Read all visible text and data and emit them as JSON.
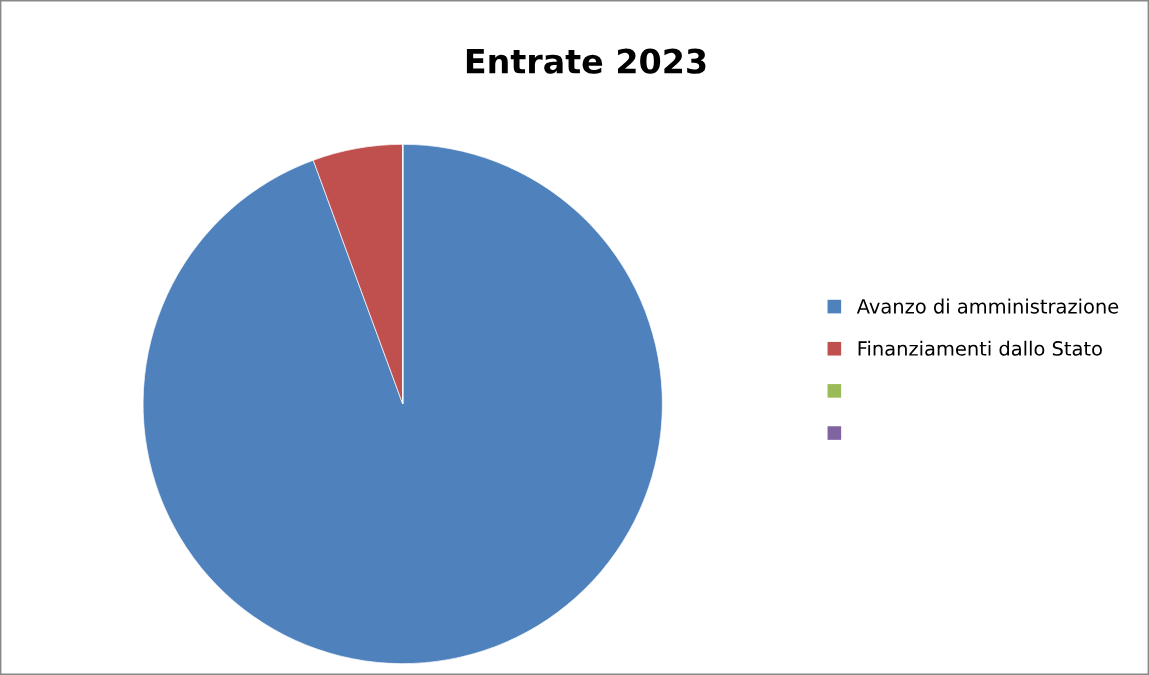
{
  "chart_data": {
    "type": "pie",
    "title": "Entrate 2023",
    "categories": [
      "Avanzo di amministrazione",
      "Finanziamenti dallo Stato",
      null,
      null
    ],
    "values": [
      94.4,
      5.6,
      0,
      0
    ],
    "colors": [
      "#4f81bd",
      "#c0504d",
      "#9bbb59",
      "#8064a2"
    ],
    "legend": "right"
  }
}
